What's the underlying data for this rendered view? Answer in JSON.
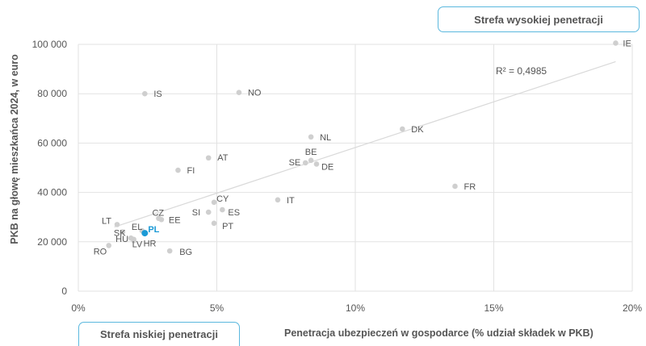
{
  "callouts": {
    "high": "Strefa wysokiej penetracji",
    "low": "Strefa niskiej penetracji"
  },
  "colors": {
    "point": "#cfcfcf",
    "highlight": "#1b9ad6",
    "trend": "#d9d9d9",
    "grid": "#e2e2e2",
    "callout_border": "#5bb8de"
  },
  "chart_data": {
    "type": "scatter",
    "xlabel": "Penetracja ubezpieczeń w gospodarce (% udział składek w PKB)",
    "ylabel": "PKB na głowę mieszkańca 2024, w euro",
    "xlim": [
      0,
      20
    ],
    "ylim": [
      0,
      100000
    ],
    "x_ticks": [
      "0%",
      "5%",
      "10%",
      "15%",
      "20%"
    ],
    "y_ticks": [
      "0",
      "20 000",
      "40 000",
      "60 000",
      "80 000",
      "100 000"
    ],
    "grid": true,
    "trendline": {
      "type": "linear",
      "x0": 1.3,
      "y0": 26000,
      "x1": 19.4,
      "y1": 93000,
      "r2_label": "R² = 0,4985"
    },
    "points": [
      {
        "label": "IE",
        "x": 19.4,
        "y": 100500
      },
      {
        "label": "IS",
        "x": 2.4,
        "y": 80000
      },
      {
        "label": "NO",
        "x": 5.8,
        "y": 80500
      },
      {
        "label": "NL",
        "x": 8.4,
        "y": 62500
      },
      {
        "label": "DK",
        "x": 11.7,
        "y": 65700
      },
      {
        "label": "AT",
        "x": 4.7,
        "y": 54000
      },
      {
        "label": "FI",
        "x": 3.6,
        "y": 49000
      },
      {
        "label": "SE",
        "x": 8.2,
        "y": 52000
      },
      {
        "label": "BE",
        "x": 8.4,
        "y": 53000
      },
      {
        "label": "DE",
        "x": 8.6,
        "y": 51500
      },
      {
        "label": "FR",
        "x": 13.6,
        "y": 42500
      },
      {
        "label": "CY",
        "x": 4.9,
        "y": 36000
      },
      {
        "label": "IT",
        "x": 7.2,
        "y": 37000
      },
      {
        "label": "SI",
        "x": 4.7,
        "y": 32000
      },
      {
        "label": "ES",
        "x": 5.2,
        "y": 33000
      },
      {
        "label": "PT",
        "x": 4.9,
        "y": 27500
      },
      {
        "label": "CZ",
        "x": 2.9,
        "y": 29500
      },
      {
        "label": "EE",
        "x": 3.0,
        "y": 29000
      },
      {
        "label": "LT",
        "x": 1.4,
        "y": 27000
      },
      {
        "label": "EL",
        "x": 2.3,
        "y": 24500
      },
      {
        "label": "PL",
        "x": 2.4,
        "y": 23500,
        "highlight": true
      },
      {
        "label": "SK",
        "x": 1.6,
        "y": 24000
      },
      {
        "label": "HU",
        "x": 1.9,
        "y": 21500
      },
      {
        "label": "LV",
        "x": 2.0,
        "y": 21000
      },
      {
        "label": "HR",
        "x": 2.0,
        "y": 20500
      },
      {
        "label": "RO",
        "x": 1.1,
        "y": 18500
      },
      {
        "label": "BG",
        "x": 3.3,
        "y": 16300
      }
    ]
  }
}
